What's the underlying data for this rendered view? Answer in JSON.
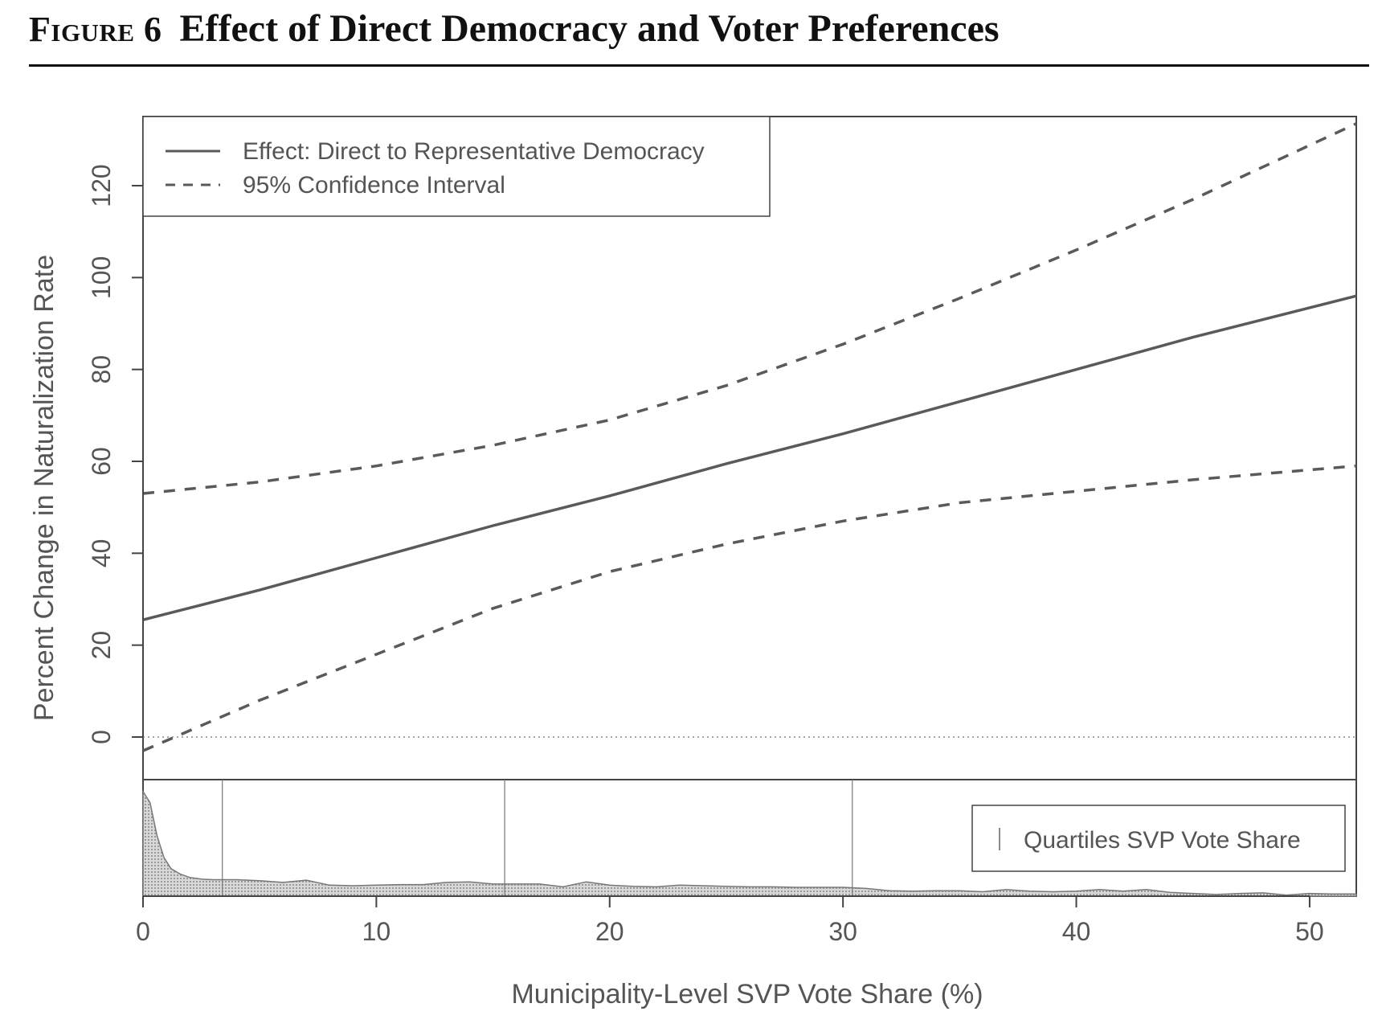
{
  "figure": {
    "label": "Figure 6",
    "title": "Effect of Direct Democracy and Voter Preferences"
  },
  "chart_data": {
    "type": "line",
    "xlabel": "Municipality-Level SVP Vote Share (%)",
    "ylabel": "Percent Change in Naturalization Rate",
    "xlim": [
      0,
      52
    ],
    "ylim": [
      -10,
      135
    ],
    "xticks": [
      0,
      10,
      20,
      30,
      40,
      50
    ],
    "yticks": [
      0,
      20,
      40,
      60,
      80,
      100,
      120
    ],
    "x": [
      0,
      5,
      10,
      15,
      20,
      25,
      30,
      35,
      40,
      45,
      52
    ],
    "series": [
      {
        "name": "Effect: Direct to Representative Democracy",
        "style": "solid",
        "values": [
          25.5,
          32,
          39,
          46,
          52.5,
          59.5,
          66,
          73,
          80,
          87,
          96
        ]
      },
      {
        "name": "95% Confidence Interval",
        "style": "dashed",
        "values": [
          53,
          55.5,
          59,
          63.5,
          69,
          76.5,
          85.5,
          95.5,
          106,
          117,
          133.5
        ]
      },
      {
        "name": "",
        "style": "dashed",
        "values": [
          -3,
          8,
          18,
          28,
          36,
          42,
          47,
          51,
          53.5,
          56,
          59
        ]
      }
    ],
    "reference_line": {
      "y": 0,
      "style": "dotted"
    },
    "legend": {
      "position": "top-left"
    },
    "density_panel": {
      "legend_label": "Quartiles SVP Vote Share",
      "legend_position": "right",
      "quartiles": [
        3.4,
        15.5,
        30.4
      ],
      "x": [
        0,
        0.3,
        0.6,
        0.9,
        1.2,
        1.6,
        2,
        2.5,
        3,
        4,
        5,
        6,
        7,
        8,
        9,
        10,
        11,
        12,
        13,
        14,
        15,
        16,
        17,
        18,
        19,
        20,
        21,
        22,
        23,
        24,
        25,
        26,
        27,
        28,
        29,
        30,
        31,
        32,
        33,
        34,
        35,
        36,
        37,
        38,
        39,
        40,
        41,
        42,
        43,
        44,
        45,
        46,
        47,
        48,
        49,
        50,
        51,
        52
      ],
      "density": [
        0.95,
        0.85,
        0.55,
        0.35,
        0.25,
        0.2,
        0.17,
        0.155,
        0.15,
        0.15,
        0.14,
        0.125,
        0.145,
        0.1,
        0.095,
        0.1,
        0.105,
        0.105,
        0.125,
        0.13,
        0.11,
        0.11,
        0.11,
        0.085,
        0.13,
        0.1,
        0.09,
        0.085,
        0.1,
        0.095,
        0.09,
        0.085,
        0.085,
        0.08,
        0.08,
        0.08,
        0.07,
        0.05,
        0.045,
        0.05,
        0.05,
        0.04,
        0.06,
        0.045,
        0.04,
        0.045,
        0.06,
        0.045,
        0.06,
        0.035,
        0.025,
        0.015,
        0.025,
        0.03,
        0.01,
        0.025,
        0.02,
        0.02
      ]
    }
  },
  "colors": {
    "line": "#5a5a5a",
    "axis": "#444444",
    "text": "#555555",
    "density_fill": "#c8c8c8"
  }
}
